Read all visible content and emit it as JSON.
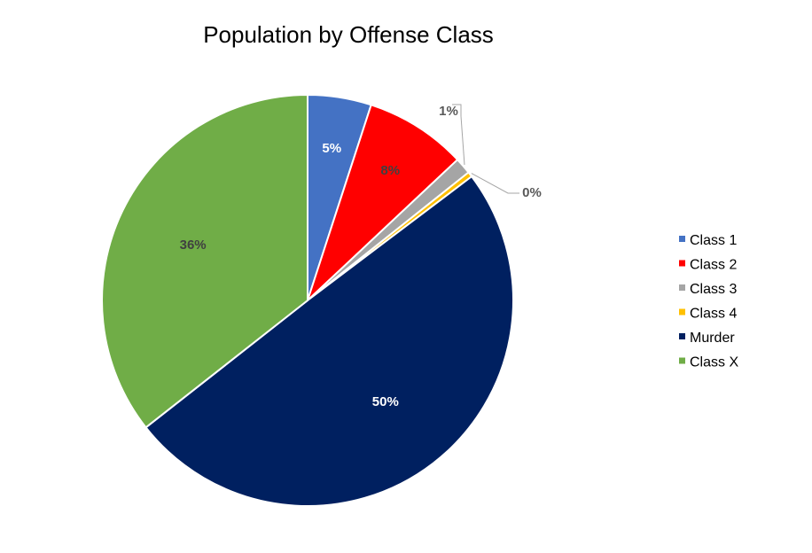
{
  "chart_data": {
    "type": "pie",
    "title": "Population by Offense Class",
    "legend_position": "right",
    "slices": [
      {
        "name": "Class 1",
        "value": 5,
        "label": "5%",
        "color": "#4472C4",
        "label_color": "#ffffff"
      },
      {
        "name": "Class 2",
        "value": 8,
        "label": "8%",
        "color": "#FF0000",
        "label_color": "#404040"
      },
      {
        "name": "Class 3",
        "value": 1.3,
        "label": "1%",
        "color": "#A5A5A5",
        "label_color": "#595959"
      },
      {
        "name": "Class 4",
        "value": 0.4,
        "label": "0%",
        "color": "#FFC000",
        "label_color": "#595959"
      },
      {
        "name": "Murder",
        "value": 49.7,
        "label": "50%",
        "color": "#002060",
        "label_color": "#ffffff"
      },
      {
        "name": "Class X",
        "value": 35.6,
        "label": "36%",
        "color": "#70AD47",
        "label_color": "#404040"
      }
    ]
  }
}
